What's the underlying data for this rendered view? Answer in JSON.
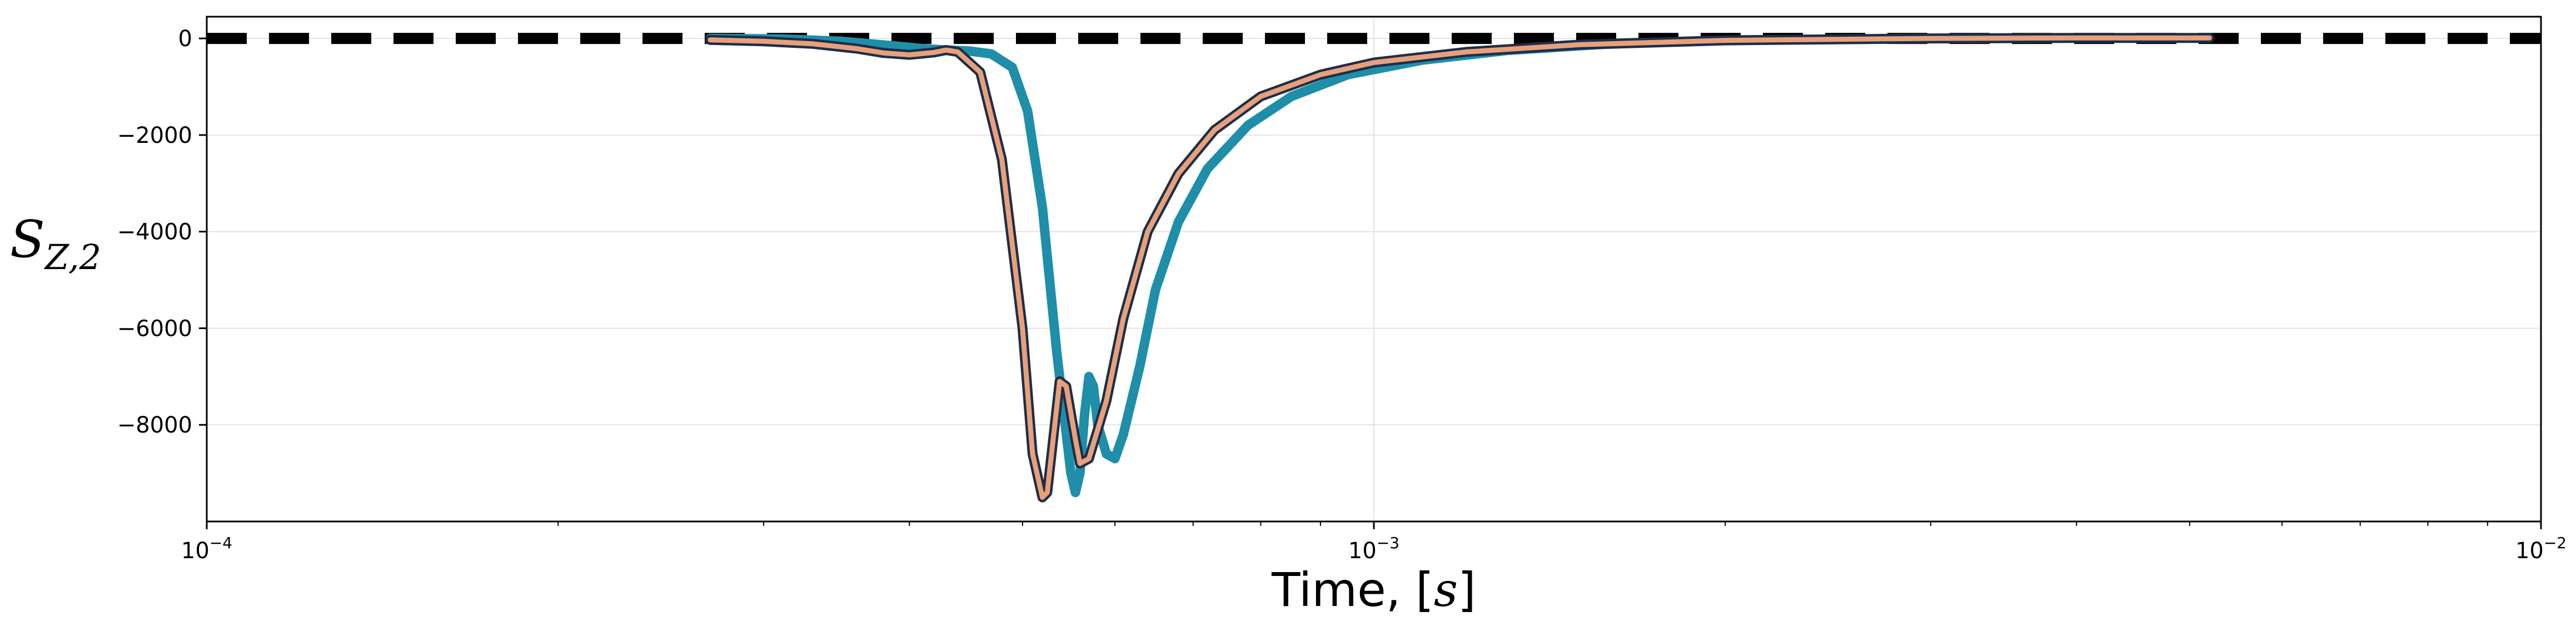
{
  "chart_data": {
    "type": "line",
    "xlabel": "Time, [s]",
    "ylabel": "S_{Z,2}",
    "xscale": "log",
    "xlim": [
      0.0001,
      0.01
    ],
    "ylim": [
      -10000,
      450
    ],
    "grid": true,
    "x_tick_labels": [
      {
        "value": 0.0001,
        "base": "10",
        "exp": "−4"
      },
      {
        "value": 0.001,
        "base": "10",
        "exp": "−3"
      },
      {
        "value": 0.01,
        "base": "10",
        "exp": "−2"
      }
    ],
    "y_tick_labels": [
      {
        "value": 0,
        "label": "0"
      },
      {
        "value": -2000,
        "label": "−2000"
      },
      {
        "value": -4000,
        "label": "−4000"
      },
      {
        "value": -6000,
        "label": "−6000"
      },
      {
        "value": -8000,
        "label": "−8000"
      }
    ],
    "series": [
      {
        "color": "#000000",
        "style": "dashed",
        "points": [
          [
            0.0001,
            0
          ],
          [
            0.01,
            0
          ]
        ]
      },
      {
        "color": "#1f8ea8",
        "style": "solid",
        "points": [
          [
            0.00027,
            0
          ],
          [
            0.00031,
            -10
          ],
          [
            0.00035,
            -60
          ],
          [
            0.00039,
            -160
          ],
          [
            0.00041,
            -210
          ],
          [
            0.00043,
            -240
          ],
          [
            0.00045,
            -260
          ],
          [
            0.00047,
            -320
          ],
          [
            0.00049,
            -600
          ],
          [
            0.000505,
            -1500
          ],
          [
            0.00052,
            -3500
          ],
          [
            0.000535,
            -6500
          ],
          [
            0.00055,
            -9000
          ],
          [
            0.000555,
            -9400
          ],
          [
            0.00056,
            -9000
          ],
          [
            0.000565,
            -7800
          ],
          [
            0.00057,
            -7000
          ],
          [
            0.000575,
            -7200
          ],
          [
            0.00058,
            -8000
          ],
          [
            0.00059,
            -8600
          ],
          [
            0.0006,
            -8700
          ],
          [
            0.00061,
            -8200
          ],
          [
            0.00063,
            -6800
          ],
          [
            0.00065,
            -5200
          ],
          [
            0.00068,
            -3800
          ],
          [
            0.00072,
            -2700
          ],
          [
            0.00078,
            -1800
          ],
          [
            0.00085,
            -1200
          ],
          [
            0.00095,
            -750
          ],
          [
            0.0011,
            -450
          ],
          [
            0.0013,
            -250
          ],
          [
            0.0016,
            -110
          ],
          [
            0.002,
            -40
          ],
          [
            0.003,
            0
          ],
          [
            0.004,
            10
          ],
          [
            0.0052,
            10
          ]
        ]
      },
      {
        "color": "#1c2e4a",
        "style": "solid",
        "points": [
          [
            0.00027,
            -30
          ],
          [
            0.0003,
            -60
          ],
          [
            0.00033,
            -110
          ],
          [
            0.00036,
            -210
          ],
          [
            0.00038,
            -300
          ],
          [
            0.0004,
            -340
          ],
          [
            0.00042,
            -290
          ],
          [
            0.00043,
            -240
          ],
          [
            0.00044,
            -280
          ],
          [
            0.00046,
            -700
          ],
          [
            0.00048,
            -2500
          ],
          [
            0.0005,
            -6000
          ],
          [
            0.00051,
            -8600
          ],
          [
            0.00052,
            -9500
          ],
          [
            0.000525,
            -9400
          ],
          [
            0.00053,
            -8500
          ],
          [
            0.000538,
            -7100
          ],
          [
            0.000545,
            -7200
          ],
          [
            0.000555,
            -8300
          ],
          [
            0.00056,
            -8800
          ],
          [
            0.00057,
            -8700
          ],
          [
            0.00059,
            -7500
          ],
          [
            0.00061,
            -5800
          ],
          [
            0.00064,
            -4000
          ],
          [
            0.00068,
            -2800
          ],
          [
            0.00073,
            -1900
          ],
          [
            0.0008,
            -1200
          ],
          [
            0.0009,
            -750
          ],
          [
            0.001,
            -500
          ],
          [
            0.0012,
            -280
          ],
          [
            0.0015,
            -130
          ],
          [
            0.002,
            -40
          ],
          [
            0.003,
            0
          ],
          [
            0.004,
            10
          ],
          [
            0.0052,
            10
          ]
        ]
      },
      {
        "color": "#e8a07a",
        "style": "solid",
        "points": [
          [
            0.00027,
            -30
          ],
          [
            0.0003,
            -60
          ],
          [
            0.00033,
            -110
          ],
          [
            0.00036,
            -210
          ],
          [
            0.00038,
            -300
          ],
          [
            0.0004,
            -340
          ],
          [
            0.00042,
            -290
          ],
          [
            0.00043,
            -240
          ],
          [
            0.00044,
            -280
          ],
          [
            0.00046,
            -700
          ],
          [
            0.00048,
            -2500
          ],
          [
            0.0005,
            -6000
          ],
          [
            0.00051,
            -8600
          ],
          [
            0.00052,
            -9500
          ],
          [
            0.000525,
            -9400
          ],
          [
            0.00053,
            -8500
          ],
          [
            0.000538,
            -7100
          ],
          [
            0.000545,
            -7200
          ],
          [
            0.000555,
            -8300
          ],
          [
            0.00056,
            -8800
          ],
          [
            0.00057,
            -8700
          ],
          [
            0.00059,
            -7500
          ],
          [
            0.00061,
            -5800
          ],
          [
            0.00064,
            -4000
          ],
          [
            0.00068,
            -2800
          ],
          [
            0.00073,
            -1900
          ],
          [
            0.0008,
            -1200
          ],
          [
            0.0009,
            -750
          ],
          [
            0.001,
            -500
          ],
          [
            0.0012,
            -280
          ],
          [
            0.0015,
            -130
          ],
          [
            0.002,
            -40
          ],
          [
            0.003,
            0
          ],
          [
            0.004,
            10
          ],
          [
            0.0052,
            10
          ]
        ]
      }
    ]
  }
}
